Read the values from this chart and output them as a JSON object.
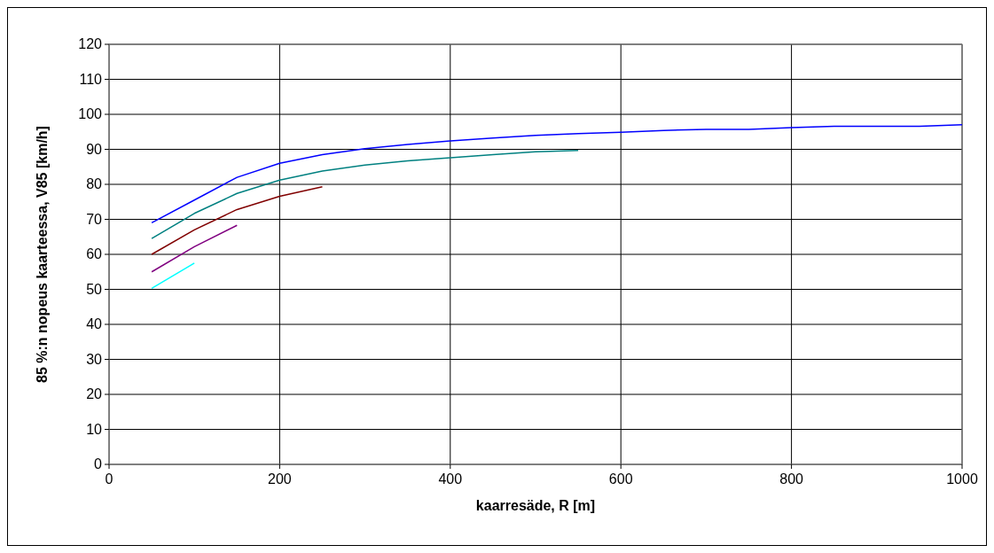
{
  "chart_data": {
    "type": "line",
    "xlabel": "kaarresäde, R [m]",
    "ylabel": "85 %:n nopeus kaarteessa, V85 [km/h]",
    "xlim": [
      0,
      1000
    ],
    "xticks": [
      0,
      200,
      400,
      600,
      800,
      1000
    ],
    "ylim": [
      0,
      120
    ],
    "yticks": [
      0,
      10,
      20,
      30,
      40,
      50,
      60,
      70,
      80,
      90,
      100,
      110,
      120
    ],
    "grid": true,
    "marker": "none",
    "line_style": "solid",
    "series": [
      {
        "color": "#0000ff",
        "x": [
          50,
          100,
          150,
          200,
          250,
          300,
          350,
          400,
          450,
          500,
          550,
          600,
          650,
          700,
          750,
          800,
          850,
          900,
          950,
          1000
        ],
        "values": [
          69,
          75.5,
          82,
          86,
          88.5,
          90.2,
          91.4,
          92.4,
          93.2,
          94,
          94.5,
          94.9,
          95.4,
          95.7,
          95.7,
          96.2,
          96.6,
          96.6,
          96.6,
          97
        ]
      },
      {
        "color": "#008080",
        "x": [
          50,
          100,
          150,
          200,
          250,
          300,
          350,
          400,
          450,
          500,
          550
        ],
        "values": [
          64.5,
          71.7,
          77.4,
          81.2,
          83.8,
          85.5,
          86.7,
          87.6,
          88.5,
          89.3,
          89.7
        ]
      },
      {
        "color": "#800000",
        "x": [
          50,
          100,
          150,
          200,
          250
        ],
        "values": [
          60,
          67,
          72.8,
          76.6,
          79.3
        ]
      },
      {
        "color": "#800080",
        "x": [
          50,
          100,
          150
        ],
        "values": [
          55,
          62.2,
          68.3
        ]
      },
      {
        "color": "#00ffff",
        "x": [
          50,
          100
        ],
        "values": [
          50.3,
          57.5
        ]
      }
    ]
  }
}
